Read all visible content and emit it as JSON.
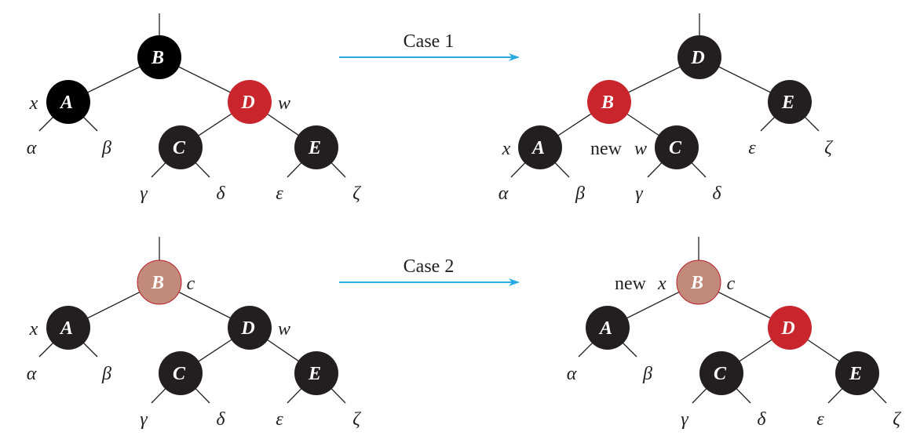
{
  "colors": {
    "black_node": "#231f20",
    "root_black": "#000000",
    "red_node": "#c8252c",
    "brown_node": "#c18a7a",
    "brown_stroke": "#b8202a",
    "arrow": "#29aae1",
    "edge": "#231f20"
  },
  "case1": {
    "label": "Case 1"
  },
  "case2": {
    "label": "Case 2"
  },
  "nodes": {
    "A": "A",
    "B": "B",
    "C": "C",
    "D": "D",
    "E": "E"
  },
  "subtrees": {
    "alpha": "α",
    "beta": "β",
    "gamma": "γ",
    "delta": "δ",
    "epsilon": "ε",
    "zeta": "ζ"
  },
  "labels": {
    "x": "x",
    "w": "w",
    "c": "c",
    "new": "new"
  }
}
